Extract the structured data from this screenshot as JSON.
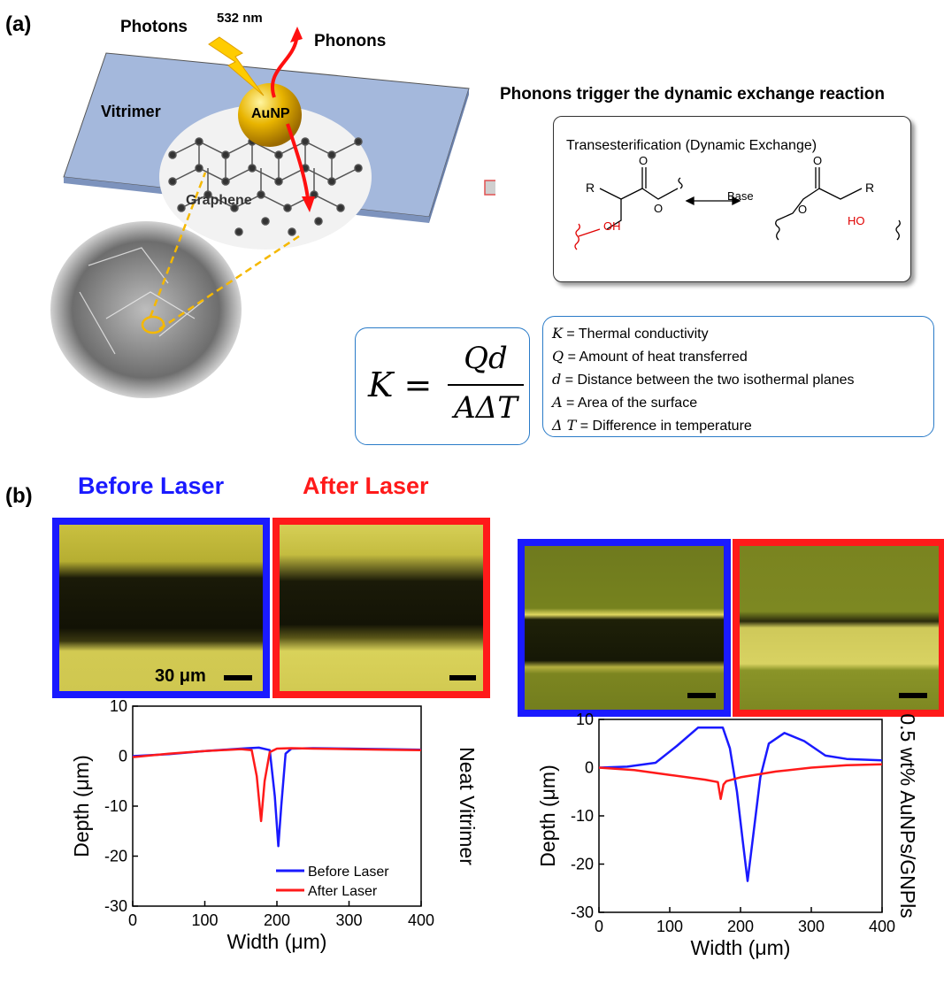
{
  "panel_a": {
    "label": "(a)",
    "photons": "Photons",
    "wavelength": "532 nm",
    "phonons": "Phonons",
    "vitrimer": "Vitrimer",
    "aunp": "AuNP",
    "graphene": "Graphene",
    "reaction_title": "Phonons trigger the dynamic exchange reaction",
    "reaction_box_title": "Transesterification (Dynamic Exchange)",
    "base": "Base",
    "r_left": "R",
    "oh_left": "OH",
    "o_left_top": "O",
    "o_left_mid": "O",
    "r_right": "R",
    "ho_right": "HO",
    "o_right_top": "O",
    "o_right_mid": "O",
    "formula": {
      "lhs": "K =",
      "numerator": "Qd",
      "denominator": "AΔT"
    },
    "legend": [
      {
        "sym": "K",
        "text": " = Thermal conductivity"
      },
      {
        "sym": "Q",
        "text": " = Amount of heat transferred"
      },
      {
        "sym": "d",
        "text": " = Distance between the two isothermal planes"
      },
      {
        "sym": "A",
        "text": " = Area of the surface"
      },
      {
        "sym": "Δ T",
        "text": " = Difference in temperature"
      }
    ]
  },
  "panel_b": {
    "label": "(b)",
    "before": "Before Laser",
    "after": "After Laser",
    "scale": "30 μm",
    "colors": {
      "before": "#1a1aff",
      "after": "#ff1a1a"
    }
  },
  "chart_data": [
    {
      "type": "line",
      "side_label": "Neat Vitrimer",
      "xlabel": "Width (μm)",
      "ylabel": "Depth (μm)",
      "xlim": [
        0,
        400
      ],
      "ylim": [
        -30,
        10
      ],
      "xticks": [
        "0",
        "100",
        "200",
        "300",
        "400"
      ],
      "yticks": [
        "10",
        "0",
        "-10",
        "-20",
        "-30"
      ],
      "legend": "bottom-right",
      "series": [
        {
          "name": "Before Laser",
          "color": "#1a1aff",
          "x": [
            0,
            50,
            100,
            150,
            175,
            190,
            197,
            202,
            206,
            212,
            220,
            250,
            300,
            350,
            400
          ],
          "y": [
            0,
            0.4,
            1,
            1.5,
            1.7,
            1.2,
            -8,
            -18,
            -10,
            0.5,
            1.5,
            1.6,
            1.5,
            1.4,
            1.3
          ]
        },
        {
          "name": "After Laser",
          "color": "#ff1a1a",
          "x": [
            0,
            50,
            100,
            150,
            165,
            172,
            178,
            183,
            190,
            200,
            220,
            250,
            300,
            350,
            400
          ],
          "y": [
            -0.2,
            0.5,
            1,
            1.4,
            1.2,
            -4,
            -13,
            -5,
            0.8,
            1.5,
            1.6,
            1.5,
            1.4,
            1.3,
            1.2
          ]
        }
      ]
    },
    {
      "type": "line",
      "side_label": "0.5 wt% AuNPs/GNPls",
      "xlabel": "Width (μm)",
      "ylabel": "Depth (μm)",
      "xlim": [
        0,
        400
      ],
      "ylim": [
        -30,
        10
      ],
      "xticks": [
        "0",
        "100",
        "200",
        "300",
        "400"
      ],
      "yticks": [
        "10",
        "0",
        "-10",
        "-20",
        "-30"
      ],
      "series": [
        {
          "name": "Before Laser",
          "color": "#1a1aff",
          "x": [
            0,
            40,
            80,
            110,
            140,
            175,
            185,
            195,
            203,
            210,
            218,
            228,
            240,
            262,
            290,
            320,
            350,
            400
          ],
          "y": [
            0,
            0.2,
            1,
            4.5,
            8.3,
            8.3,
            4,
            -5,
            -15,
            -23.5,
            -14,
            -2,
            5,
            7.2,
            5.5,
            2.5,
            1.8,
            1.5
          ]
        },
        {
          "name": "After Laser",
          "color": "#ff1a1a",
          "x": [
            0,
            50,
            100,
            150,
            168,
            172,
            176,
            180,
            200,
            250,
            300,
            350,
            400
          ],
          "y": [
            0,
            -0.5,
            -1.5,
            -2.5,
            -3,
            -6.5,
            -3.5,
            -2.8,
            -2,
            -0.8,
            0,
            0.5,
            0.7
          ]
        }
      ]
    }
  ]
}
